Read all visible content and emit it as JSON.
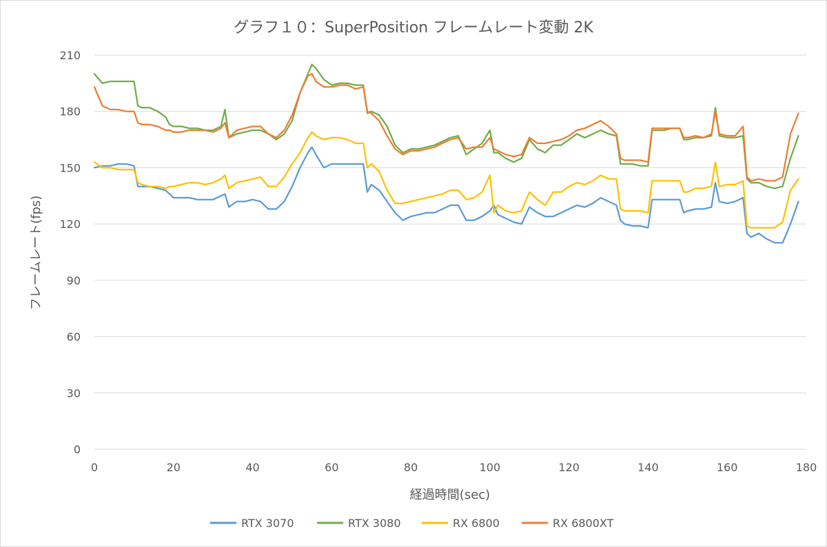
{
  "chart_data": {
    "type": "line",
    "title": "グラフ１０：SuperPosition フレームレート変動 2K",
    "xlabel": "経過時間(sec)",
    "ylabel": "フレームレート(fps)",
    "xlim": [
      0,
      180
    ],
    "ylim": [
      0,
      210
    ],
    "xticks": [
      0,
      20,
      40,
      60,
      80,
      100,
      120,
      140,
      160,
      180
    ],
    "yticks": [
      0,
      30,
      60,
      90,
      120,
      150,
      180,
      210
    ],
    "grid": "horizontal",
    "legend_position": "bottom",
    "x": [
      0,
      2,
      4,
      6,
      8,
      10,
      11,
      12,
      14,
      16,
      18,
      19,
      20,
      22,
      24,
      26,
      28,
      30,
      32,
      33,
      34,
      36,
      38,
      40,
      42,
      44,
      46,
      48,
      50,
      52,
      54,
      55,
      56,
      58,
      60,
      62,
      64,
      66,
      68,
      69,
      70,
      72,
      74,
      76,
      78,
      80,
      82,
      84,
      86,
      88,
      90,
      92,
      94,
      96,
      98,
      100,
      101,
      102,
      104,
      106,
      108,
      110,
      112,
      114,
      116,
      118,
      120,
      122,
      124,
      126,
      128,
      130,
      132,
      133,
      134,
      136,
      138,
      140,
      141,
      142,
      144,
      146,
      148,
      149,
      150,
      152,
      154,
      156,
      157,
      158,
      160,
      162,
      164,
      165,
      166,
      168,
      170,
      172,
      174,
      176,
      178
    ],
    "series": [
      {
        "name": "RTX 3070",
        "color": "#5b9bd5",
        "values": [
          150,
          151,
          151,
          152,
          152,
          151,
          140,
          140,
          140,
          139,
          138,
          136,
          134,
          134,
          134,
          133,
          133,
          133,
          135,
          136,
          129,
          132,
          132,
          133,
          132,
          128,
          128,
          132,
          140,
          150,
          158,
          161,
          157,
          150,
          152,
          152,
          152,
          152,
          152,
          137,
          141,
          138,
          132,
          126,
          122,
          124,
          125,
          126,
          126,
          128,
          130,
          130,
          122,
          122,
          124,
          127,
          130,
          125,
          123,
          121,
          120,
          129,
          126,
          124,
          124,
          126,
          128,
          130,
          129,
          131,
          134,
          132,
          130,
          122,
          120,
          119,
          119,
          118,
          133,
          133,
          133,
          133,
          133,
          126,
          127,
          128,
          128,
          129,
          142,
          132,
          131,
          132,
          134,
          115,
          113,
          115,
          112,
          110,
          110,
          120,
          132
        ]
      },
      {
        "name": "RTX 3080",
        "color": "#70ad47",
        "values": [
          200,
          195,
          196,
          196,
          196,
          196,
          183,
          182,
          182,
          180,
          177,
          173,
          172,
          172,
          171,
          171,
          170,
          170,
          172,
          181,
          166,
          168,
          169,
          170,
          170,
          168,
          165,
          168,
          175,
          190,
          200,
          205,
          203,
          197,
          194,
          195,
          195,
          194,
          194,
          179,
          180,
          178,
          172,
          162,
          158,
          160,
          160,
          161,
          162,
          164,
          166,
          167,
          157,
          160,
          163,
          170,
          158,
          158,
          155,
          153,
          155,
          165,
          160,
          158,
          162,
          162,
          165,
          168,
          166,
          168,
          170,
          168,
          167,
          152,
          152,
          152,
          151,
          151,
          170,
          170,
          170,
          171,
          171,
          165,
          165,
          166,
          166,
          167,
          182,
          167,
          166,
          166,
          167,
          144,
          142,
          142,
          140,
          139,
          140,
          155,
          167
        ]
      },
      {
        "name": "RX 6800",
        "color": "#ffc000",
        "values": [
          153,
          150,
          150,
          149,
          149,
          149,
          142,
          141,
          140,
          140,
          139,
          140,
          140,
          141,
          142,
          142,
          141,
          142,
          144,
          146,
          139,
          142,
          143,
          144,
          145,
          140,
          140,
          145,
          152,
          158,
          166,
          169,
          167,
          165,
          166,
          166,
          165,
          163,
          163,
          150,
          152,
          148,
          138,
          131,
          131,
          132,
          133,
          134,
          135,
          136,
          138,
          138,
          133,
          134,
          137,
          146,
          126,
          130,
          127,
          126,
          127,
          137,
          133,
          130,
          137,
          137,
          140,
          142,
          141,
          143,
          146,
          144,
          144,
          128,
          127,
          127,
          127,
          126,
          143,
          143,
          143,
          143,
          143,
          137,
          137,
          139,
          139,
          140,
          153,
          140,
          141,
          141,
          143,
          119,
          118,
          118,
          118,
          118,
          121,
          138,
          144
        ]
      },
      {
        "name": "RX 6800XT",
        "color": "#ed7d31",
        "values": [
          193,
          183,
          181,
          181,
          180,
          180,
          174,
          173,
          173,
          172,
          170,
          170,
          169,
          169,
          170,
          170,
          170,
          169,
          171,
          174,
          166,
          170,
          171,
          172,
          172,
          168,
          166,
          170,
          178,
          190,
          199,
          200,
          196,
          193,
          193,
          194,
          194,
          192,
          193,
          180,
          179,
          175,
          167,
          160,
          157,
          159,
          159,
          160,
          161,
          163,
          165,
          166,
          160,
          161,
          161,
          166,
          160,
          159,
          157,
          156,
          157,
          166,
          163,
          163,
          164,
          165,
          167,
          170,
          171,
          173,
          175,
          172,
          168,
          155,
          154,
          154,
          154,
          153,
          171,
          171,
          171,
          171,
          171,
          166,
          166,
          167,
          166,
          168,
          180,
          168,
          167,
          167,
          172,
          145,
          143,
          144,
          143,
          143,
          145,
          168,
          179
        ]
      }
    ]
  }
}
